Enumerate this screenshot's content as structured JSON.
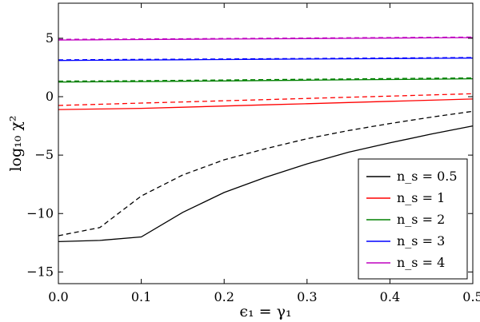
{
  "chart_data": {
    "type": "line",
    "xlabel": "ϵ₁ = γ₁",
    "ylabel": "log₁₀ χ²",
    "xlim": [
      0.0,
      0.5
    ],
    "ylim": [
      -16,
      8
    ],
    "xticks": [
      "0.0",
      "0.1",
      "0.2",
      "0.3",
      "0.4",
      "0.5"
    ],
    "yticks": [
      "5",
      "0",
      "−5",
      "−10",
      "−15"
    ],
    "legend_position": "lower-right",
    "grid": false,
    "x": [
      0.0,
      0.05,
      0.1,
      0.15,
      0.2,
      0.25,
      0.3,
      0.35,
      0.4,
      0.45,
      0.5
    ],
    "series": [
      {
        "name": "n_s = 0.5",
        "color": "#000000",
        "solid": [
          -12.4,
          -12.3,
          -12.0,
          -9.9,
          -8.2,
          -6.9,
          -5.75,
          -4.75,
          -3.95,
          -3.2,
          -2.5
        ],
        "dashed": [
          -11.9,
          -11.2,
          -8.5,
          -6.7,
          -5.4,
          -4.45,
          -3.6,
          -2.9,
          -2.3,
          -1.75,
          -1.25
        ]
      },
      {
        "name": "n_s = 1",
        "color": "#ff0000",
        "solid": [
          -1.1,
          -1.05,
          -1.0,
          -0.9,
          -0.8,
          -0.7,
          -0.6,
          -0.5,
          -0.4,
          -0.3,
          -0.2
        ],
        "dashed": [
          -0.75,
          -0.65,
          -0.55,
          -0.45,
          -0.35,
          -0.25,
          -0.15,
          -0.05,
          0.05,
          0.15,
          0.25
        ]
      },
      {
        "name": "n_s = 2",
        "color": "#008000",
        "solid": [
          1.25,
          1.27,
          1.29,
          1.32,
          1.35,
          1.38,
          1.41,
          1.44,
          1.47,
          1.5,
          1.53
        ],
        "dashed": [
          1.33,
          1.35,
          1.37,
          1.4,
          1.43,
          1.46,
          1.49,
          1.52,
          1.55,
          1.58,
          1.61
        ]
      },
      {
        "name": "n_s = 3",
        "color": "#0000ff",
        "solid": [
          3.1,
          3.12,
          3.14,
          3.16,
          3.18,
          3.2,
          3.22,
          3.24,
          3.26,
          3.28,
          3.3
        ],
        "dashed": [
          3.15,
          3.17,
          3.19,
          3.21,
          3.23,
          3.25,
          3.27,
          3.29,
          3.31,
          3.33,
          3.35
        ]
      },
      {
        "name": "n_s = 4",
        "color": "#bf00bf",
        "solid": [
          4.85,
          4.87,
          4.89,
          4.91,
          4.93,
          4.95,
          4.97,
          4.99,
          5.01,
          5.03,
          5.05
        ],
        "dashed": [
          4.9,
          4.92,
          4.94,
          4.96,
          4.98,
          5.0,
          5.02,
          5.04,
          5.06,
          5.08,
          5.1
        ]
      }
    ]
  }
}
